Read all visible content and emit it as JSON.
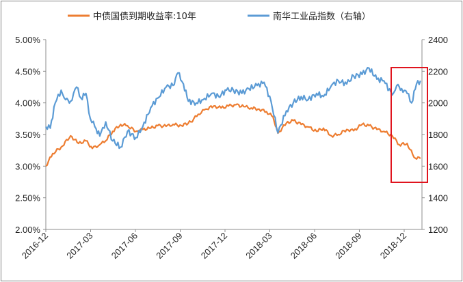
{
  "chart_data": {
    "type": "line",
    "title": "",
    "legend": {
      "placement": "top"
    },
    "x_tick_labels": [
      "2016-12",
      "2017-03",
      "2017-06",
      "2017-09",
      "2017-12",
      "2018-03",
      "2018-06",
      "2018-09",
      "2018-12"
    ],
    "y_left": {
      "range": [
        2.0,
        5.0
      ],
      "tick_labels": [
        "5.00%",
        "4.50%",
        "4.00%",
        "3.50%",
        "3.00%",
        "2.50%",
        "2.00%"
      ]
    },
    "y_right": {
      "range": [
        1200,
        2400
      ],
      "tick_labels": [
        "2400",
        "2200",
        "2000",
        "1800",
        "1600",
        "1400",
        "1200"
      ]
    },
    "grid": false,
    "series": [
      {
        "name": "中债国债到期收益率:10年",
        "color": "#ed7d31",
        "axis": "left",
        "x": [
          "2016-12-01",
          "2016-12-15",
          "2017-01-01",
          "2017-01-20",
          "2017-02-05",
          "2017-02-20",
          "2017-03-05",
          "2017-03-20",
          "2017-04-01",
          "2017-04-15",
          "2017-05-01",
          "2017-05-15",
          "2017-06-01",
          "2017-06-15",
          "2017-07-01",
          "2017-07-15",
          "2017-08-01",
          "2017-08-15",
          "2017-09-01",
          "2017-09-20",
          "2017-10-05",
          "2017-10-20",
          "2017-11-05",
          "2017-11-20",
          "2017-12-05",
          "2017-12-20",
          "2018-01-05",
          "2018-01-20",
          "2018-02-05",
          "2018-02-20",
          "2018-03-05",
          "2018-03-15",
          "2018-04-01",
          "2018-04-15",
          "2018-05-01",
          "2018-05-15",
          "2018-06-01",
          "2018-06-15",
          "2018-07-01",
          "2018-07-15",
          "2018-08-01",
          "2018-08-15",
          "2018-09-01",
          "2018-09-15",
          "2018-10-01",
          "2018-10-15",
          "2018-11-01",
          "2018-11-15",
          "2018-12-01",
          "2018-12-15",
          "2018-12-28"
        ],
        "values": [
          3.0,
          3.2,
          3.3,
          3.48,
          3.36,
          3.4,
          3.28,
          3.34,
          3.4,
          3.55,
          3.66,
          3.64,
          3.55,
          3.58,
          3.6,
          3.64,
          3.63,
          3.66,
          3.64,
          3.7,
          3.82,
          3.9,
          3.95,
          3.92,
          3.95,
          3.97,
          3.94,
          3.92,
          3.9,
          3.86,
          3.78,
          3.52,
          3.68,
          3.72,
          3.66,
          3.62,
          3.55,
          3.6,
          3.48,
          3.5,
          3.58,
          3.56,
          3.66,
          3.64,
          3.58,
          3.55,
          3.48,
          3.34,
          3.36,
          3.14,
          3.12
        ]
      },
      {
        "name": "南华工业品指数（右轴）",
        "color": "#5b9bd5",
        "axis": "right",
        "x": [
          "2016-12-01",
          "2016-12-10",
          "2016-12-20",
          "2017-01-01",
          "2017-01-10",
          "2017-01-20",
          "2017-02-01",
          "2017-02-10",
          "2017-02-20",
          "2017-03-01",
          "2017-03-10",
          "2017-03-20",
          "2017-04-01",
          "2017-04-15",
          "2017-05-01",
          "2017-05-15",
          "2017-06-01",
          "2017-06-15",
          "2017-07-01",
          "2017-07-15",
          "2017-08-01",
          "2017-08-15",
          "2017-08-25",
          "2017-09-05",
          "2017-09-15",
          "2017-10-01",
          "2017-10-15",
          "2017-11-01",
          "2017-11-15",
          "2017-12-01",
          "2017-12-15",
          "2018-01-01",
          "2018-01-15",
          "2018-02-01",
          "2018-02-15",
          "2018-03-01",
          "2018-03-15",
          "2018-04-01",
          "2018-04-15",
          "2018-05-01",
          "2018-05-15",
          "2018-06-01",
          "2018-06-15",
          "2018-07-01",
          "2018-07-15",
          "2018-08-01",
          "2018-08-15",
          "2018-09-01",
          "2018-09-15",
          "2018-10-01",
          "2018-10-15",
          "2018-11-01",
          "2018-11-10",
          "2018-11-20",
          "2018-12-01",
          "2018-12-10",
          "2018-12-20",
          "2018-12-28"
        ],
        "values": [
          1850,
          1840,
          2000,
          2080,
          2020,
          2010,
          2100,
          2030,
          2060,
          1900,
          1850,
          1790,
          1880,
          1760,
          1720,
          1820,
          1780,
          1850,
          1970,
          2030,
          2100,
          2110,
          2190,
          2120,
          2010,
          2000,
          2020,
          2060,
          2040,
          2080,
          2080,
          2060,
          2090,
          2110,
          2130,
          2010,
          1810,
          1950,
          2000,
          2040,
          2020,
          2060,
          2040,
          2110,
          2140,
          2120,
          2170,
          2180,
          2220,
          2150,
          2140,
          2050,
          2110,
          2090,
          2060,
          2000,
          2120,
          2140
        ]
      }
    ]
  }
}
